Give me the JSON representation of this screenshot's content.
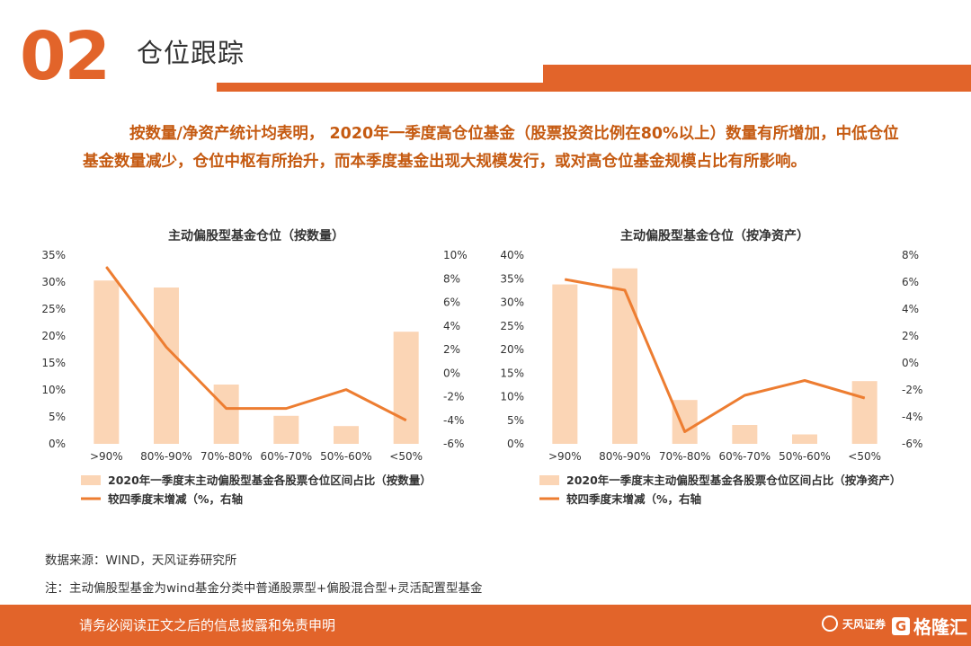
{
  "header": {
    "section_number": "02",
    "title": "仓位跟踪",
    "accent_color": "#e2642a"
  },
  "intro": "按数量/净资产统计均表明， 2020年一季度高仓位基金（股票投资比例在80%以上）数量有所增加，中低仓位基金数量减少，仓位中枢有所抬升，而本季度基金出现大规模发行，或对高仓位基金规模占比有所影响。",
  "chart_data": [
    {
      "type": "bar+line",
      "title": "主动偏股型基金仓位（按数量）",
      "categories": [
        ">90%",
        "80%-90%",
        "70%-80%",
        "60%-70%",
        "50%-60%",
        "<50%"
      ],
      "series": [
        {
          "name": "2020年一季度末主动偏股型基金各股票仓位区间占比（按数量）",
          "type": "bar",
          "axis": "left",
          "color": "#fbd5b5",
          "values": [
            30.3,
            29.0,
            11.0,
            5.2,
            3.3,
            20.8
          ]
        },
        {
          "name": "较四季度末增减（%，右轴",
          "type": "line",
          "axis": "right",
          "color": "#ed7d31",
          "values": [
            9.0,
            2.2,
            -3.0,
            -3.0,
            -1.4,
            -4.0
          ]
        }
      ],
      "y_left": {
        "min": 0,
        "max": 35,
        "step": 5,
        "ticks": [
          "0%",
          "5%",
          "10%",
          "15%",
          "20%",
          "25%",
          "30%",
          "35%"
        ]
      },
      "y_right": {
        "min": -6,
        "max": 10,
        "step": 2,
        "ticks": [
          "-6%",
          "-4%",
          "-2%",
          "0%",
          "2%",
          "4%",
          "6%",
          "8%",
          "10%"
        ]
      },
      "legend_position": "bottom-left",
      "grid": false
    },
    {
      "type": "bar+line",
      "title": "主动偏股型基金仓位（按净资产）",
      "categories": [
        ">90%",
        "80%-90%",
        "70%-80%",
        "60%-70%",
        "50%-60%",
        "<50%"
      ],
      "series": [
        {
          "name": "2020年一季度末主动偏股型基金各股票仓位区间占比（按净资产）",
          "type": "bar",
          "axis": "left",
          "color": "#fbd5b5",
          "values": [
            33.8,
            37.2,
            9.3,
            4.0,
            2.0,
            13.3
          ]
        },
        {
          "name": "较四季度末增减（%，右轴",
          "type": "line",
          "axis": "right",
          "color": "#ed7d31",
          "values": [
            6.2,
            5.4,
            -5.1,
            -2.4,
            -1.3,
            -2.6
          ]
        }
      ],
      "y_left": {
        "min": 0,
        "max": 40,
        "step": 5,
        "ticks": [
          "0%",
          "5%",
          "10%",
          "15%",
          "20%",
          "25%",
          "30%",
          "35%",
          "40%"
        ]
      },
      "y_right": {
        "min": -6,
        "max": 8,
        "step": 2,
        "ticks": [
          "-6%",
          "-4%",
          "-2%",
          "0%",
          "2%",
          "4%",
          "6%",
          "8%"
        ]
      },
      "legend_position": "bottom-left",
      "grid": false
    }
  ],
  "source": "数据来源：WIND，天风证券研究所",
  "note": "注：主动偏股型基金为wind基金分类中普通股票型+偏股混合型+灵活配置型基金",
  "footer": {
    "disclaimer": "请务必阅读正文之后的信息披露和免责申明",
    "brand1": "天风证券",
    "brand1_icon": "flower-logo-icon",
    "brand2": "格隆汇",
    "brand2_icon": "g-logo-icon"
  }
}
